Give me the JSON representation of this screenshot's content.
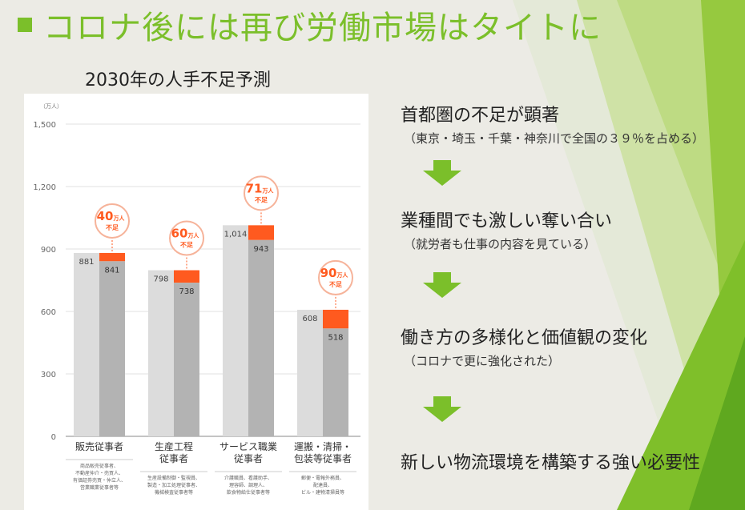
{
  "title": "コロナ後には再び労働市場はタイトに",
  "subtitle": "2030年の人手不足予測",
  "colors": {
    "accent": "#7bbf2a",
    "gap": "#ff5a1f",
    "supply": "#b3b3b3",
    "demand": "#dcdcdc"
  },
  "chart_data": {
    "type": "bar",
    "y_unit": "（万人）",
    "ylim": [
      0,
      1500
    ],
    "yticks": [
      "0",
      "300",
      "600",
      "900",
      "1,200",
      "1,500"
    ],
    "categories": [
      {
        "label": [
          "販売従事者"
        ],
        "note": [
          "商品販売従事者、",
          "不動産仲介・売買人、",
          "有価証券売買・仲立人、",
          "営業職業従事者等"
        ]
      },
      {
        "label": [
          "生産工程",
          "従事者"
        ],
        "note": [
          "生産設備制御・監視員、",
          "製造・加工処理従事者、",
          "機械検査従事者等"
        ]
      },
      {
        "label": [
          "サービス職業",
          "従事者"
        ],
        "note": [
          "介護職員、看護助手、",
          "理容師、調理人、",
          "飲食物給仕従事者等"
        ]
      },
      {
        "label": [
          "運搬・清掃・",
          "包装等従事者"
        ],
        "note": [
          "郵便・電報外務員、",
          "配達員、",
          "ビル・建物清掃員等"
        ]
      }
    ],
    "series": [
      {
        "values": [
          881,
          798,
          1014,
          608
        ],
        "labels": [
          "881",
          "798",
          "1,014",
          "608"
        ]
      },
      {
        "values": [
          841,
          738,
          943,
          518
        ],
        "labels": [
          "841",
          "738",
          "943",
          "518"
        ]
      }
    ],
    "shortage": [
      {
        "num": "40",
        "unit": "万人",
        "text": "不足"
      },
      {
        "num": "60",
        "unit": "万人",
        "text": "不足"
      },
      {
        "num": "71",
        "unit": "万人",
        "text": "不足"
      },
      {
        "num": "90",
        "unit": "万人",
        "text": "不足"
      }
    ]
  },
  "flow": {
    "step1": {
      "main": "首都圏の不足が顕著",
      "sub": "（東京・埼玉・千葉・神奈川で全国の３９％を占める）"
    },
    "step2": {
      "main": "業種間でも激しい奪い合い",
      "sub": "（就労者も仕事の内容を見ている）"
    },
    "step3": {
      "main": "働き方の多様化と価値観の変化",
      "sub": "（コロナで更に強化された）"
    },
    "step4": {
      "main": "新しい物流環境を構築する強い必要性"
    }
  }
}
